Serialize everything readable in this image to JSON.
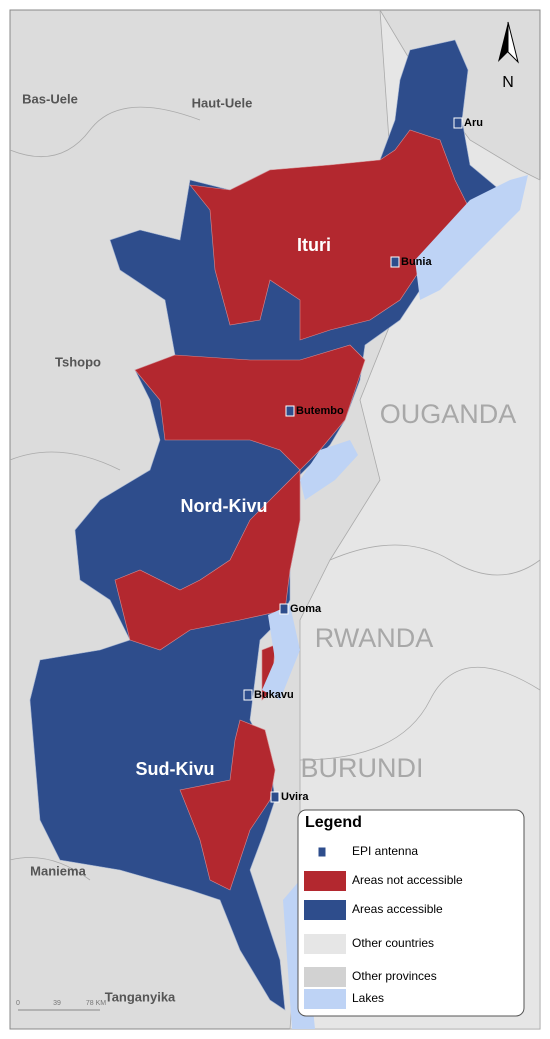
{
  "map": {
    "north_label": "N",
    "provinces": [
      "Ituri",
      "Nord-Kivu",
      "Sud-Kivu"
    ],
    "neighbor_provinces": [
      "Bas-Uele",
      "Haut-Uele",
      "Tshopo",
      "Maniema",
      "Tanganyika"
    ],
    "countries": [
      "OUGANDA",
      "RWANDA",
      "BURUNDI"
    ],
    "cities": [
      "Aru",
      "Bunia",
      "Butembo",
      "Goma",
      "Bukavu",
      "Uvira"
    ],
    "scale_bar": {
      "labels": [
        "0",
        "39",
        "78 KM"
      ]
    }
  },
  "legend": {
    "title": "Legend",
    "items": [
      "EPI antenna",
      "Areas not accessible",
      "Areas accessible",
      "Other countries",
      "Other provinces",
      "Lakes"
    ]
  }
}
